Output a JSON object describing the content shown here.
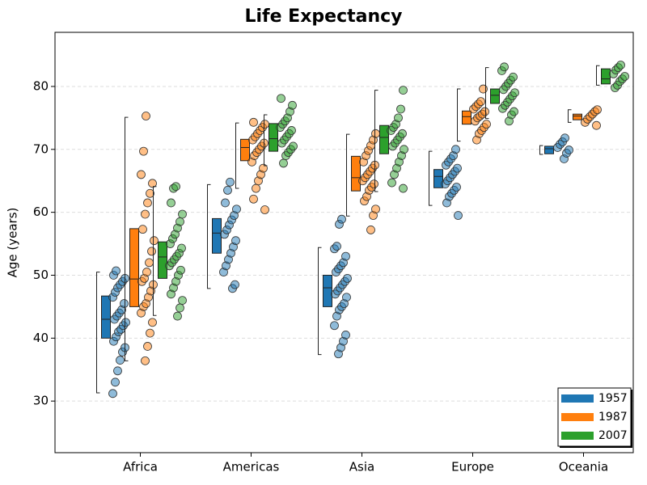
{
  "chart_data": {
    "type": "box",
    "title": "Life Expectancy",
    "y_label": "Age (years)",
    "categories": [
      "Africa",
      "Americas",
      "Asia",
      "Europe",
      "Oceania"
    ],
    "ylim": [
      21.8,
      88.6
    ],
    "yticks": [
      30,
      40,
      50,
      60,
      70,
      80
    ],
    "grid": true,
    "legend": "lower right",
    "series": [
      {
        "name": "1957",
        "color": "#1f77b4",
        "boxes": [
          {
            "q1": 40,
            "median": 43,
            "q3": 46.7,
            "whisker_low": 31.3,
            "whisker_high": 50.5,
            "points": [
              31.2,
              33,
              34.8,
              36.5,
              37.8,
              38.5,
              39.5,
              40.2,
              41,
              41.4,
              42,
              42.5,
              43,
              43.5,
              44,
              44.5,
              45.5,
              46.5,
              47.3,
              48,
              48.5,
              49,
              49.5,
              50,
              50.7
            ]
          },
          {
            "q1": 53.5,
            "median": 56.7,
            "q3": 59,
            "whisker_low": 47.9,
            "whisker_high": 64.4,
            "points": [
              47.9,
              48.5,
              50.5,
              51.5,
              52.5,
              53.5,
              54.5,
              55.5,
              56.5,
              57.2,
              58,
              58.8,
              59.5,
              60.5,
              61.5,
              63.5,
              64.8
            ]
          },
          {
            "q1": 45,
            "median": 48,
            "q3": 50,
            "whisker_low": 37.4,
            "whisker_high": 54.4,
            "points": [
              37.5,
              38.5,
              39.5,
              40.5,
              42,
              43.5,
              44.5,
              45,
              45.5,
              46.5,
              47,
              47.5,
              48,
              48.5,
              49,
              49.5,
              50.5,
              51,
              51.5,
              52,
              53,
              54.2,
              54.6,
              58.1,
              58.9
            ]
          },
          {
            "q1": 63.9,
            "median": 65.7,
            "q3": 66.8,
            "whisker_low": 61.1,
            "whisker_high": 69.7,
            "points": [
              59.5,
              61.5,
              62.5,
              63,
              63.5,
              64,
              64.5,
              65,
              65.5,
              66,
              66.5,
              67,
              67.5,
              68,
              68.5,
              69,
              70
            ]
          },
          {
            "q1": 69.3,
            "median": 70.1,
            "q3": 70.5,
            "whisker_low": 69.2,
            "whisker_high": 70.6,
            "points": [
              68.5,
              69.4,
              69.9,
              70.3,
              70.8,
              71.2,
              71.8
            ]
          }
        ]
      },
      {
        "name": "1987",
        "color": "#ff7f0e",
        "boxes": [
          {
            "q1": 45,
            "median": 49.4,
            "q3": 57.4,
            "whisker_low": 36.4,
            "whisker_high": 75.1,
            "points": [
              36.4,
              38.7,
              40.8,
              42.5,
              44,
              45,
              45.5,
              46.5,
              47.5,
              48.5,
              49,
              49.5,
              50.5,
              52,
              53.8,
              55.5,
              57.3,
              59.7,
              61.5,
              63,
              64.6,
              66,
              69.7,
              75.3
            ]
          },
          {
            "q1": 68.2,
            "median": 70.3,
            "q3": 71.6,
            "whisker_low": 63.8,
            "whisker_high": 74.2,
            "points": [
              60.4,
              62.1,
              63.8,
              65,
              66,
              67,
              68,
              69,
              69.5,
              70,
              70.5,
              71,
              71.5,
              72,
              72.5,
              73,
              73.5,
              74,
              74.3
            ]
          },
          {
            "q1": 63.4,
            "median": 65.5,
            "q3": 68.9,
            "whisker_low": 59.4,
            "whisker_high": 72.4,
            "points": [
              57.2,
              59.5,
              60.5,
              61.8,
              62.5,
              63.5,
              64,
              64.5,
              65,
              65.5,
              66,
              66.5,
              67,
              67.5,
              68,
              69,
              69.8,
              70.6,
              71.5,
              72.5
            ]
          },
          {
            "q1": 74,
            "median": 75.2,
            "q3": 76.1,
            "whisker_low": 71.3,
            "whisker_high": 79.6,
            "points": [
              71.5,
              72.5,
              73,
              73.5,
              74,
              74.5,
              75,
              75.3,
              75.6,
              76,
              76.4,
              76.8,
              77.2,
              77.6,
              79.6
            ]
          },
          {
            "q1": 74.7,
            "median": 75.3,
            "q3": 75.6,
            "whisker_low": 74.3,
            "whisker_high": 76.3,
            "points": [
              73.8,
              74.3,
              74.8,
              75.2,
              75.6,
              76,
              76.3
            ]
          }
        ]
      },
      {
        "name": "2007",
        "color": "#2ca02c",
        "boxes": [
          {
            "q1": 49.5,
            "median": 52.9,
            "q3": 55.3,
            "whisker_low": 43.6,
            "whisker_high": 64.1,
            "points": [
              43.5,
              44.8,
              46,
              47,
              48,
              49,
              50,
              50.8,
              51.5,
              52,
              52.5,
              53,
              53.5,
              54.3,
              55,
              55.8,
              56.5,
              57.5,
              58.5,
              59.7,
              61.5,
              63.8,
              64.1
            ]
          },
          {
            "q1": 69.7,
            "median": 71.7,
            "q3": 74.1,
            "whisker_low": 67.4,
            "whisker_high": 75.5,
            "points": [
              67.8,
              69,
              69.5,
              70,
              70.5,
              71,
              71.5,
              72,
              72.5,
              73,
              73.5,
              74,
              74.5,
              75,
              76,
              77,
              78.1
            ]
          },
          {
            "q1": 69.3,
            "median": 71.9,
            "q3": 73.8,
            "whisker_low": 63.3,
            "whisker_high": 79.4,
            "points": [
              63.8,
              64.7,
              66,
              67,
              68,
              69,
              70,
              70.5,
              71,
              71.5,
              72,
              72.5,
              73,
              73.5,
              74,
              75,
              76.4,
              79.4
            ]
          },
          {
            "q1": 77.3,
            "median": 78.6,
            "q3": 79.6,
            "whisker_low": 74.9,
            "whisker_high": 83,
            "points": [
              74.5,
              75.5,
              76,
              76.5,
              77,
              77.5,
              78,
              78.5,
              79,
              79.5,
              80,
              80.5,
              81,
              81.5,
              82.5,
              83.1
            ]
          },
          {
            "q1": 80.4,
            "median": 81.2,
            "q3": 82.8,
            "whisker_low": 80.2,
            "whisker_high": 83.3,
            "points": [
              79.8,
              80.2,
              80.8,
              81.2,
              81.6,
              82,
              82.6,
              83,
              83.4
            ]
          }
        ]
      }
    ]
  }
}
